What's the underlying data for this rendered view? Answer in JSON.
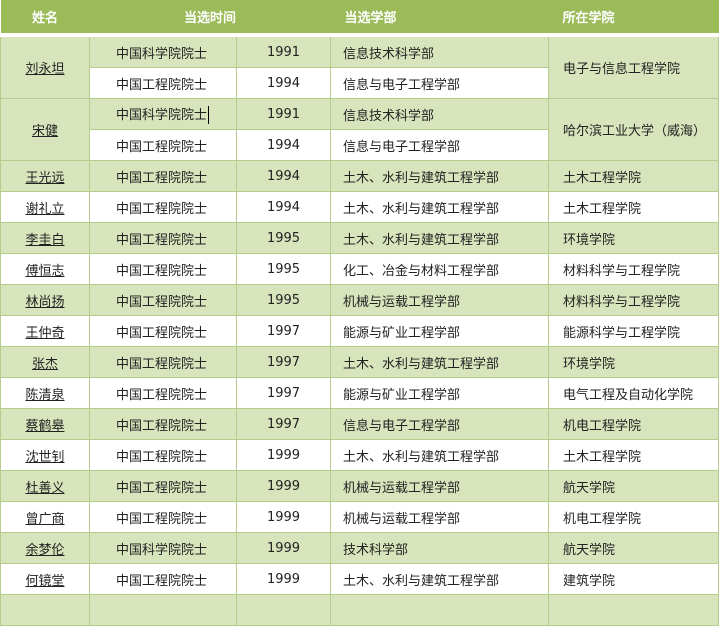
{
  "headers": {
    "name": "姓名",
    "time": "当选时间",
    "dept": "当选学部",
    "college": "所在学院"
  },
  "merged": [
    {
      "name": "刘永坦",
      "college": "电子与信息工程学院",
      "entries": [
        {
          "title": "中国科学院院士",
          "year": "1991",
          "dept": "信息技术科学部"
        },
        {
          "title": "中国工程院院士",
          "year": "1994",
          "dept": "信息与电子工程学部"
        }
      ]
    },
    {
      "name": "宋健",
      "college": "哈尔滨工业大学（威海）",
      "entries": [
        {
          "title": "中国科学院院士",
          "year": "1991",
          "dept": "信息技术科学部"
        },
        {
          "title": "中国工程院院士",
          "year": "1994",
          "dept": "信息与电子工程学部"
        }
      ]
    }
  ],
  "rows": [
    {
      "name": "王光远",
      "title": "中国工程院院士",
      "year": "1994",
      "dept": "土木、水利与建筑工程学部",
      "college": "土木工程学院"
    },
    {
      "name": "谢礼立",
      "title": "中国工程院院士",
      "year": "1994",
      "dept": "土木、水利与建筑工程学部",
      "college": "土木工程学院"
    },
    {
      "name": "李圭白",
      "title": "中国工程院院士",
      "year": "1995",
      "dept": "土木、水利与建筑工程学部",
      "college": "环境学院"
    },
    {
      "name": "傅恒志",
      "title": "中国工程院院士",
      "year": "1995",
      "dept": "化工、冶金与材料工程学部",
      "college": "材料科学与工程学院"
    },
    {
      "name": "林尚扬",
      "title": "中国工程院院士",
      "year": "1995",
      "dept": "机械与运载工程学部",
      "college": "材料科学与工程学院"
    },
    {
      "name": "王仲奇",
      "title": "中国工程院院士",
      "year": "1997",
      "dept": "能源与矿业工程学部",
      "college": "能源科学与工程学院"
    },
    {
      "name": "张杰",
      "title": "中国工程院院士",
      "year": "1997",
      "dept": "土木、水利与建筑工程学部",
      "college": "环境学院"
    },
    {
      "name": "陈清泉",
      "title": "中国工程院院士",
      "year": "1997",
      "dept": "能源与矿业工程学部",
      "college": "电气工程及自动化学院"
    },
    {
      "name": "蔡鹤皋",
      "title": "中国工程院院士",
      "year": "1997",
      "dept": "信息与电子工程学部",
      "college": "机电工程学院"
    },
    {
      "name": "沈世钊",
      "title": "中国工程院院士",
      "year": "1999",
      "dept": "土木、水利与建筑工程学部",
      "college": "土木工程学院"
    },
    {
      "name": "杜善义",
      "title": "中国工程院院士",
      "year": "1999",
      "dept": "机械与运载工程学部",
      "college": "航天学院"
    },
    {
      "name": "曾广商",
      "title": "中国工程院院士",
      "year": "1999",
      "dept": "机械与运载工程学部",
      "college": "机电工程学院"
    },
    {
      "name": "余梦伦",
      "title": "中国科学院院士",
      "year": "1999",
      "dept": "技术科学部",
      "college": "航天学院"
    },
    {
      "name": "何镜堂",
      "title": "中国工程院院士",
      "year": "1999",
      "dept": "土木、水利与建筑工程学部",
      "college": "建筑学院"
    }
  ]
}
